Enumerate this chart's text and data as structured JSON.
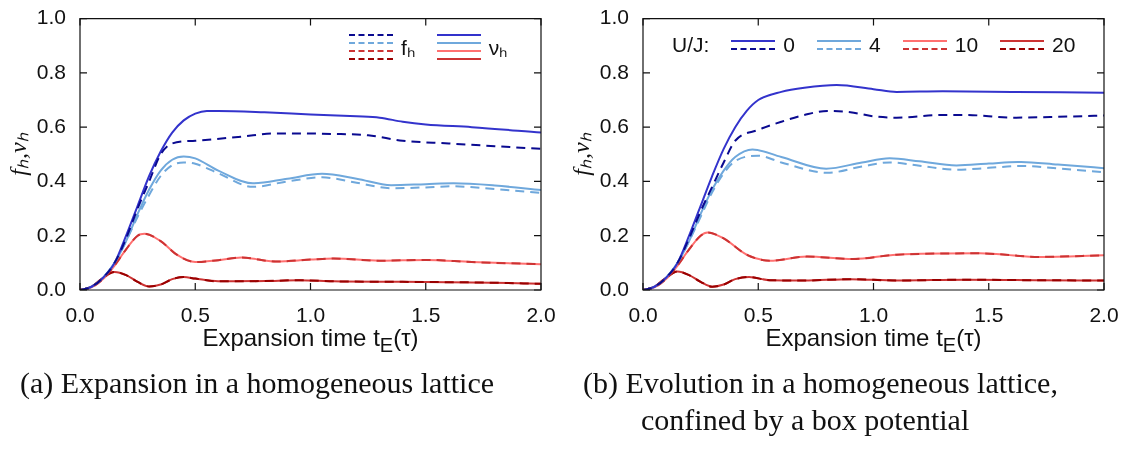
{
  "chart_data": [
    {
      "type": "line",
      "title": "(a) Expansion in a homogeneous lattice",
      "xlabel": "Expansion time t$_{E}$(τ)",
      "ylabel": "fₕ,νₕ",
      "xlim": [
        0,
        2
      ],
      "ylim": [
        0,
        1
      ],
      "xticks": [
        {
          "value": 0,
          "label": "0.0"
        },
        {
          "value": 0.5,
          "label": "0.5"
        },
        {
          "value": 1,
          "label": "1.0"
        },
        {
          "value": 1.5,
          "label": "1.5"
        },
        {
          "value": 2,
          "label": "2.0"
        }
      ],
      "yticks": [
        {
          "value": 0,
          "label": "0.0"
        },
        {
          "value": 0.2,
          "label": "0.2"
        },
        {
          "value": 0.4,
          "label": "0.4"
        },
        {
          "value": 0.6,
          "label": "0.6"
        },
        {
          "value": 0.8,
          "label": "0.8"
        },
        {
          "value": 1,
          "label": "1.0"
        }
      ],
      "legend": "top right",
      "series": [
        {
          "name": "fₕ",
          "color": "#0a0a90",
          "line_style": "dashed",
          "x": [
            0,
            0.05,
            0.1,
            0.15,
            0.2,
            0.25,
            0.3,
            0.35,
            0.4,
            0.5,
            0.7,
            0.85,
            1.1,
            1.25,
            1.4,
            1.6,
            1.8,
            2.0
          ],
          "values": [
            0,
            0.012,
            0.045,
            0.1,
            0.19,
            0.3,
            0.4,
            0.5,
            0.54,
            0.55,
            0.565,
            0.577,
            0.575,
            0.57,
            0.55,
            0.54,
            0.53,
            0.52
          ]
        },
        {
          "color": "#6fa8dc",
          "line_style": "dashed",
          "x": [
            0,
            0.05,
            0.1,
            0.15,
            0.2,
            0.25,
            0.3,
            0.35,
            0.4,
            0.45,
            0.5,
            0.6,
            0.75,
            0.9,
            1.05,
            1.2,
            1.35,
            1.5,
            1.62,
            1.8,
            2.0
          ],
          "values": [
            0,
            0.012,
            0.045,
            0.1,
            0.18,
            0.27,
            0.35,
            0.42,
            0.46,
            0.47,
            0.465,
            0.43,
            0.38,
            0.4,
            0.415,
            0.395,
            0.375,
            0.378,
            0.382,
            0.372,
            0.358
          ]
        },
        {
          "color": "#cc3333",
          "line_style": "dashed",
          "x": [
            0,
            0.05,
            0.1,
            0.15,
            0.2,
            0.25,
            0.28,
            0.35,
            0.42,
            0.5,
            0.6,
            0.7,
            0.85,
            1.0,
            1.1,
            1.3,
            1.5,
            1.7,
            2.0
          ],
          "values": [
            0,
            0.01,
            0.04,
            0.09,
            0.15,
            0.2,
            0.207,
            0.18,
            0.13,
            0.103,
            0.11,
            0.12,
            0.105,
            0.112,
            0.116,
            0.108,
            0.111,
            0.103,
            0.095
          ]
        },
        {
          "color": "#990000",
          "line_style": "dashed",
          "x": [
            0,
            0.05,
            0.1,
            0.15,
            0.2,
            0.25,
            0.3,
            0.35,
            0.4,
            0.45,
            0.5,
            0.6,
            0.8,
            0.95,
            1.1,
            1.4,
            1.7,
            2.0
          ],
          "values": [
            0,
            0.012,
            0.045,
            0.066,
            0.055,
            0.03,
            0.013,
            0.02,
            0.04,
            0.048,
            0.042,
            0.032,
            0.033,
            0.036,
            0.032,
            0.03,
            0.028,
            0.023
          ]
        },
        {
          "name": "νₕ",
          "color": "#3333cc",
          "line_style": "solid",
          "x": [
            0,
            0.05,
            0.1,
            0.15,
            0.2,
            0.25,
            0.3,
            0.35,
            0.4,
            0.45,
            0.5,
            0.55,
            0.6,
            0.8,
            1.0,
            1.2,
            1.3,
            1.4,
            1.5,
            1.7,
            2.0
          ],
          "values": [
            0,
            0.012,
            0.045,
            0.1,
            0.2,
            0.31,
            0.42,
            0.51,
            0.58,
            0.625,
            0.65,
            0.66,
            0.66,
            0.655,
            0.647,
            0.64,
            0.635,
            0.62,
            0.61,
            0.6,
            0.58
          ]
        },
        {
          "color": "#6fa8dc",
          "line_style": "solid",
          "x": [
            0,
            0.05,
            0.1,
            0.15,
            0.2,
            0.25,
            0.3,
            0.35,
            0.4,
            0.45,
            0.5,
            0.6,
            0.75,
            0.9,
            1.05,
            1.2,
            1.35,
            1.5,
            1.62,
            1.8,
            2.0
          ],
          "values": [
            0,
            0.012,
            0.045,
            0.1,
            0.18,
            0.28,
            0.37,
            0.44,
            0.48,
            0.492,
            0.485,
            0.44,
            0.393,
            0.41,
            0.428,
            0.41,
            0.386,
            0.39,
            0.393,
            0.385,
            0.368
          ]
        },
        {
          "color": "#ff7070",
          "line_style": "solid",
          "x": [
            0,
            0.05,
            0.1,
            0.15,
            0.2,
            0.25,
            0.28,
            0.35,
            0.42,
            0.5,
            0.6,
            0.7,
            0.85,
            1.0,
            1.1,
            1.3,
            1.5,
            1.7,
            2.0
          ],
          "values": [
            0,
            0.01,
            0.04,
            0.09,
            0.15,
            0.2,
            0.207,
            0.18,
            0.13,
            0.103,
            0.11,
            0.12,
            0.105,
            0.112,
            0.116,
            0.108,
            0.111,
            0.103,
            0.095
          ]
        },
        {
          "color": "#cc3333",
          "line_style": "solid",
          "x": [
            0,
            0.05,
            0.1,
            0.15,
            0.2,
            0.25,
            0.3,
            0.35,
            0.4,
            0.45,
            0.5,
            0.6,
            0.8,
            0.95,
            1.1,
            1.4,
            1.7,
            2.0
          ],
          "values": [
            0,
            0.012,
            0.045,
            0.066,
            0.055,
            0.03,
            0.013,
            0.02,
            0.04,
            0.048,
            0.042,
            0.032,
            0.033,
            0.036,
            0.032,
            0.03,
            0.028,
            0.023
          ]
        }
      ]
    },
    {
      "type": "line",
      "title": "(b) Evolution in a homogeneous lattice, confined by a box potential",
      "xlabel": "Expansion time t$_{E}$(τ)",
      "ylabel": "fₕ,νₕ",
      "xlim": [
        0,
        2
      ],
      "ylim": [
        0,
        1
      ],
      "xticks": [
        {
          "value": 0,
          "label": "0.0"
        },
        {
          "value": 0.5,
          "label": "0.5"
        },
        {
          "value": 1,
          "label": "1.0"
        },
        {
          "value": 1.5,
          "label": "1.5"
        },
        {
          "value": 2,
          "label": "2.0"
        }
      ],
      "yticks": [
        {
          "value": 0,
          "label": "0.0"
        },
        {
          "value": 0.2,
          "label": "0.2"
        },
        {
          "value": 0.4,
          "label": "0.4"
        },
        {
          "value": 0.6,
          "label": "0.6"
        },
        {
          "value": 0.8,
          "label": "0.8"
        },
        {
          "value": 1,
          "label": "1.0"
        }
      ],
      "legend": "top",
      "legend_title": "U/J:",
      "series": [
        {
          "name": "0",
          "color": "#3333cc",
          "line_style": "solid",
          "x": [
            0,
            0.05,
            0.1,
            0.15,
            0.2,
            0.25,
            0.3,
            0.35,
            0.4,
            0.45,
            0.5,
            0.6,
            0.7,
            0.84,
            1.0,
            1.1,
            1.3,
            1.6,
            2.0
          ],
          "values": [
            0,
            0.012,
            0.045,
            0.1,
            0.2,
            0.31,
            0.42,
            0.52,
            0.6,
            0.66,
            0.7,
            0.73,
            0.745,
            0.755,
            0.74,
            0.73,
            0.732,
            0.73,
            0.727
          ]
        },
        {
          "color": "#0a0a90",
          "line_style": "dashed",
          "x": [
            0,
            0.05,
            0.1,
            0.15,
            0.2,
            0.25,
            0.3,
            0.35,
            0.4,
            0.5,
            0.6,
            0.7,
            0.8,
            0.9,
            1.0,
            1.1,
            1.3,
            1.4,
            1.6,
            1.8,
            2.0
          ],
          "values": [
            0,
            0.012,
            0.045,
            0.1,
            0.19,
            0.29,
            0.38,
            0.47,
            0.55,
            0.59,
            0.62,
            0.645,
            0.66,
            0.655,
            0.64,
            0.635,
            0.645,
            0.645,
            0.635,
            0.638,
            0.643
          ]
        },
        {
          "name": "4",
          "color": "#6fa8dc",
          "line_style": "solid",
          "x": [
            0,
            0.05,
            0.1,
            0.15,
            0.2,
            0.25,
            0.3,
            0.35,
            0.4,
            0.475,
            0.6,
            0.795,
            0.95,
            1.07,
            1.2,
            1.36,
            1.5,
            1.64,
            1.8,
            2.0
          ],
          "values": [
            0,
            0.012,
            0.045,
            0.1,
            0.18,
            0.28,
            0.37,
            0.44,
            0.49,
            0.518,
            0.49,
            0.447,
            0.47,
            0.485,
            0.474,
            0.459,
            0.466,
            0.472,
            0.462,
            0.449
          ]
        },
        {
          "color": "#6fa8dc",
          "line_style": "dashed",
          "x": [
            0,
            0.05,
            0.1,
            0.15,
            0.2,
            0.25,
            0.3,
            0.35,
            0.4,
            0.5,
            0.6,
            0.8,
            0.95,
            1.07,
            1.2,
            1.36,
            1.5,
            1.64,
            1.8,
            2.0
          ],
          "values": [
            0,
            0.012,
            0.045,
            0.1,
            0.18,
            0.27,
            0.36,
            0.43,
            0.475,
            0.495,
            0.47,
            0.432,
            0.455,
            0.47,
            0.458,
            0.443,
            0.45,
            0.457,
            0.448,
            0.434
          ]
        },
        {
          "name": "10",
          "color": "#ff7070",
          "line_style": "solid",
          "x": [
            0,
            0.05,
            0.1,
            0.15,
            0.2,
            0.25,
            0.28,
            0.35,
            0.45,
            0.55,
            0.71,
            0.91,
            1.1,
            1.46,
            1.72,
            2.0
          ],
          "values": [
            0,
            0.01,
            0.04,
            0.09,
            0.15,
            0.2,
            0.212,
            0.19,
            0.13,
            0.108,
            0.123,
            0.114,
            0.13,
            0.135,
            0.122,
            0.128
          ]
        },
        {
          "color": "#cc3333",
          "line_style": "dashed",
          "x": [
            0,
            0.05,
            0.1,
            0.15,
            0.2,
            0.25,
            0.28,
            0.35,
            0.45,
            0.55,
            0.71,
            0.91,
            1.1,
            1.46,
            1.72,
            2.0
          ],
          "values": [
            0,
            0.01,
            0.04,
            0.09,
            0.15,
            0.2,
            0.212,
            0.19,
            0.13,
            0.108,
            0.123,
            0.114,
            0.13,
            0.135,
            0.122,
            0.128
          ]
        },
        {
          "name": "20",
          "color": "#cc3333",
          "line_style": "solid",
          "x": [
            0,
            0.05,
            0.1,
            0.15,
            0.2,
            0.25,
            0.3,
            0.35,
            0.4,
            0.46,
            0.55,
            0.7,
            0.9,
            1.1,
            1.4,
            1.7,
            2.0
          ],
          "values": [
            0,
            0.012,
            0.045,
            0.068,
            0.055,
            0.03,
            0.012,
            0.02,
            0.04,
            0.048,
            0.036,
            0.035,
            0.04,
            0.035,
            0.038,
            0.036,
            0.035
          ]
        },
        {
          "color": "#990000",
          "line_style": "dashed",
          "x": [
            0,
            0.05,
            0.1,
            0.15,
            0.2,
            0.25,
            0.3,
            0.35,
            0.4,
            0.46,
            0.55,
            0.7,
            0.9,
            1.1,
            1.4,
            1.7,
            2.0
          ],
          "values": [
            0,
            0.012,
            0.045,
            0.068,
            0.055,
            0.03,
            0.012,
            0.02,
            0.04,
            0.048,
            0.036,
            0.035,
            0.04,
            0.035,
            0.038,
            0.036,
            0.035
          ]
        }
      ]
    }
  ]
}
